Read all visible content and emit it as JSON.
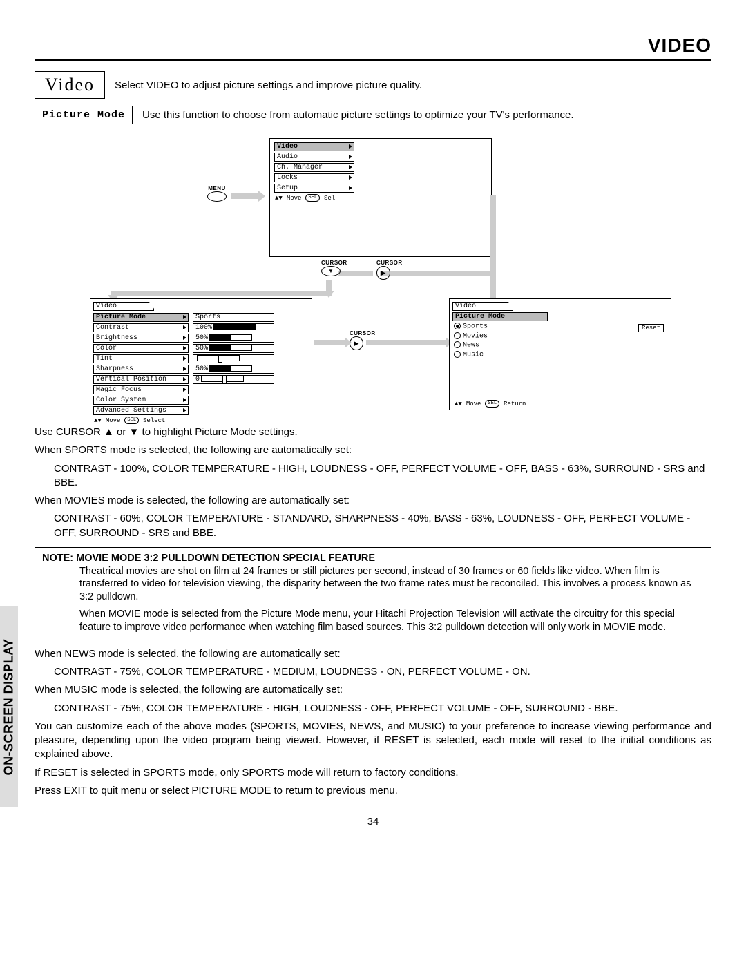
{
  "header": "VIDEO",
  "video_label": "Video",
  "video_desc": "Select VIDEO to adjust picture settings and improve picture quality.",
  "picture_mode_label": "Picture Mode",
  "picture_mode_desc": "Use this function to choose from automatic picture settings to optimize your TV's performance.",
  "menu_label": "MENU",
  "cursor_label": "CURSOR",
  "main_menu": {
    "items": [
      "Video",
      "Audio",
      "Ch. Manager",
      "Locks",
      "Setup"
    ],
    "footer_move": "Move",
    "footer_sel_pill": "SEL",
    "footer_sel": "Sel"
  },
  "video_menu": {
    "title": "Video",
    "rows": [
      {
        "label": "Picture Mode",
        "value": "Sports",
        "selected": true
      },
      {
        "label": "Contrast",
        "value": "100%",
        "fill": 100
      },
      {
        "label": "Brightness",
        "value": "50%",
        "fill": 50
      },
      {
        "label": "Color",
        "value": "50%",
        "fill": 50
      },
      {
        "label": "Tint",
        "value": "",
        "knob": 50
      },
      {
        "label": "Sharpness",
        "value": "50%",
        "fill": 50
      },
      {
        "label": "Vertical Position",
        "value": "0",
        "knob": 50
      },
      {
        "label": "Magic Focus",
        "value": null
      },
      {
        "label": "Color System",
        "value": null
      },
      {
        "label": "Advanced Settings",
        "value": null
      }
    ],
    "footer_move": "Move",
    "footer_sel_pill": "SEL",
    "footer_select": "Select"
  },
  "pm_menu": {
    "title": "Video",
    "subtitle": "Picture Mode",
    "options": [
      "Sports",
      "Movies",
      "News",
      "Music"
    ],
    "selected": 0,
    "reset": "Reset",
    "footer_move": "Move",
    "footer_sel_pill": "SEL",
    "footer_return": "Return"
  },
  "instr_cursor": "Use CURSOR ▲ or ▼ to highlight Picture Mode settings.",
  "sports_intro": "When SPORTS mode is selected, the following are automatically set:",
  "sports_detail": "CONTRAST - 100%, COLOR TEMPERATURE - HIGH, LOUDNESS - OFF, PERFECT VOLUME - OFF, BASS - 63%, SURROUND - SRS and BBE.",
  "movies_intro": "When MOVIES mode is selected, the following are automatically set:",
  "movies_detail": "CONTRAST - 60%, COLOR TEMPERATURE - STANDARD, SHARPNESS - 40%, BASS - 63%, LOUDNESS - OFF, PERFECT VOLUME - OFF, SURROUND - SRS and BBE.",
  "note_label": "NOTE:",
  "note_title": "MOVIE MODE 3:2 PULLDOWN DETECTION SPECIAL FEATURE",
  "note_p1": "Theatrical movies are shot on film at 24 frames or still pictures per second, instead of 30 frames or 60 fields like video. When film is transferred to video for television viewing, the disparity between the two frame rates must be reconciled. This involves a process known as 3:2 pulldown.",
  "note_p2": "When MOVIE mode is selected from the Picture Mode menu, your Hitachi Projection Television will activate the circuitry for this special feature to improve video performance when watching film based sources. This 3:2 pulldown detection will only work in MOVIE mode.",
  "news_intro": "When NEWS mode is selected, the following are automatically set:",
  "news_detail": "CONTRAST - 75%, COLOR TEMPERATURE - MEDIUM, LOUDNESS - ON, PERFECT VOLUME - ON.",
  "music_intro": "When MUSIC mode is selected, the following are automatically set:",
  "music_detail": "CONTRAST - 75%, COLOR TEMPERATURE - HIGH, LOUDNESS - OFF, PERFECT VOLUME - OFF, SURROUND - BBE.",
  "customize": "You can customize each of the above modes (SPORTS, MOVIES, NEWS, and MUSIC) to your preference to increase viewing performance and pleasure, depending upon the video program being viewed. However, if RESET is selected, each mode will reset to the initial conditions as explained above.",
  "reset_note": "If RESET is selected in SPORTS mode, only SPORTS mode will return to factory conditions.",
  "exit_note": "Press EXIT to quit menu or select PICTURE MODE to return to previous menu.",
  "side_label": "ON-SCREEN DISPLAY",
  "page_number": "34"
}
